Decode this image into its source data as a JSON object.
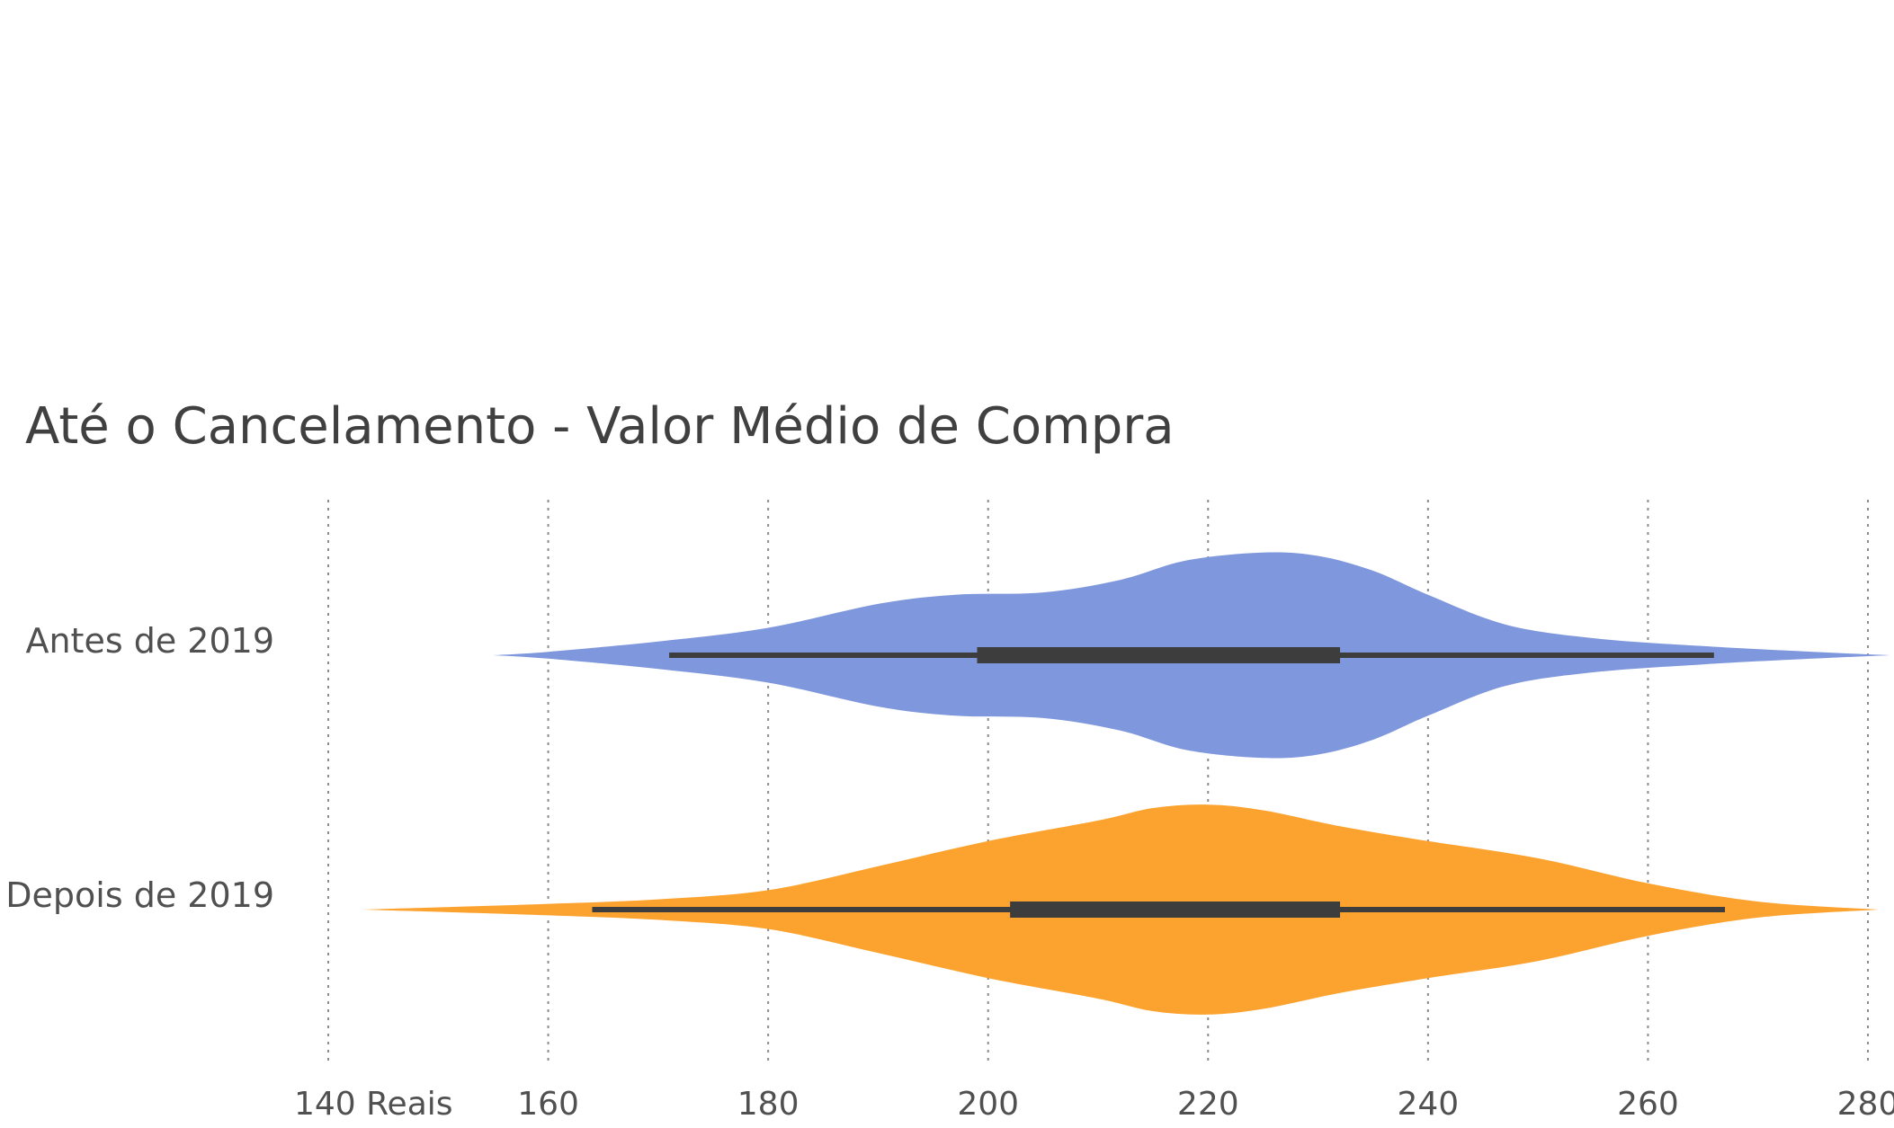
{
  "chart_data": {
    "type": "violin",
    "orientation": "horizontal",
    "title": "Até o Cancelamento - Valor Médio de Compra",
    "xlim": [
      140,
      280
    ],
    "xticks": [
      140,
      160,
      180,
      200,
      220,
      240,
      260,
      280
    ],
    "xtick_labels": [
      "140 Reais",
      "160",
      "180",
      "200",
      "220",
      "240",
      "260",
      "280"
    ],
    "grid": "vertical dotted",
    "series": [
      {
        "name": "Antes de 2019",
        "color": "#7f97dc",
        "box": {
          "whisker_low": 171,
          "q1": 199,
          "q3": 232,
          "whisker_high": 266
        },
        "density_x": [
          155,
          160,
          170,
          180,
          190,
          197,
          205,
          212,
          218,
          225,
          230,
          235,
          240,
          247,
          255,
          265,
          275,
          282
        ],
        "density_w": [
          0.0,
          0.03,
          0.12,
          0.24,
          0.45,
          0.53,
          0.55,
          0.66,
          0.83,
          0.9,
          0.87,
          0.74,
          0.53,
          0.27,
          0.15,
          0.08,
          0.03,
          0.0
        ]
      },
      {
        "name": "Depois de 2019",
        "color": "#fca22e",
        "box": {
          "whisker_low": 164,
          "q1": 202,
          "q3": 232,
          "whisker_high": 267
        },
        "density_x": [
          143,
          150,
          160,
          170,
          180,
          190,
          200,
          210,
          215,
          220,
          225,
          232,
          240,
          250,
          260,
          270,
          281
        ],
        "density_w": [
          0.0,
          0.02,
          0.05,
          0.09,
          0.17,
          0.38,
          0.6,
          0.78,
          0.89,
          0.92,
          0.87,
          0.73,
          0.6,
          0.45,
          0.23,
          0.07,
          0.0
        ]
      }
    ]
  }
}
